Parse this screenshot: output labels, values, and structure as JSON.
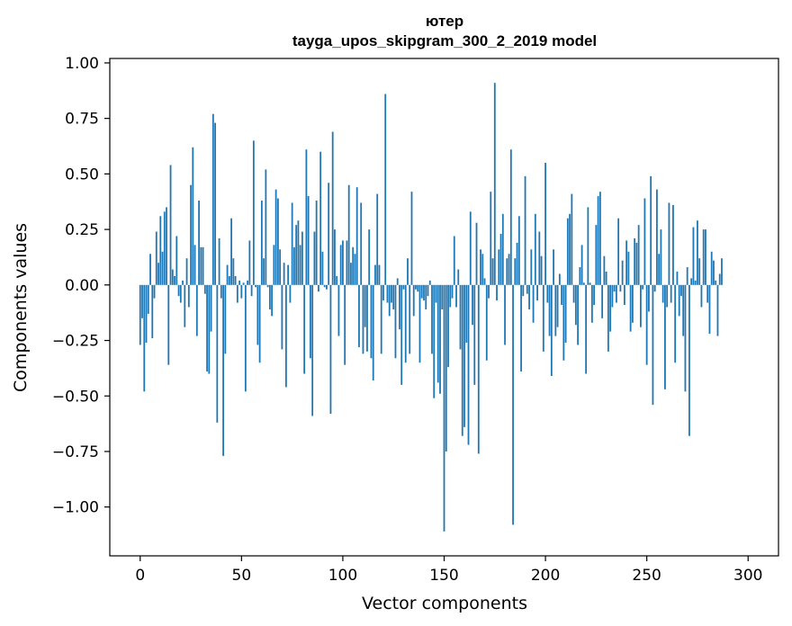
{
  "chart_data": {
    "type": "bar",
    "title": "ютер",
    "subtitle": "tayga_upos_skipgram_300_2_2019 model",
    "xlabel": "Vector components",
    "ylabel": "Components values",
    "xlim": [
      -15,
      315
    ],
    "ylim": [
      -1.22,
      1.02
    ],
    "xticks": [
      0,
      50,
      100,
      150,
      200,
      250,
      300
    ],
    "xtick_labels": [
      "0",
      "50",
      "100",
      "150",
      "200",
      "250",
      "300"
    ],
    "yticks": [
      1.0,
      0.75,
      0.5,
      0.25,
      0.0,
      -0.25,
      -0.5,
      -0.75,
      -1.0
    ],
    "ytick_labels": [
      "1.00",
      "0.75",
      "0.50",
      "0.25",
      "0.00",
      "−0.25",
      "−0.50",
      "−0.75",
      "−1.00"
    ],
    "grid": false,
    "bar_color": "#1f77b4",
    "series": [
      {
        "values": [
          -0.27,
          -0.15,
          -0.48,
          -0.26,
          -0.13,
          0.14,
          -0.24,
          -0.06,
          0.24,
          0.1,
          0.31,
          0.15,
          0.33,
          0.35,
          -0.36,
          0.54,
          0.07,
          0.04,
          0.22,
          -0.05,
          -0.08,
          0.02,
          -0.19,
          0.12,
          -0.1,
          0.45,
          0.62,
          0.18,
          -0.23,
          0.38,
          0.17,
          0.17,
          -0.04,
          -0.39,
          -0.4,
          -0.21,
          0.77,
          0.73,
          -0.62,
          0.21,
          -0.06,
          -0.77,
          -0.31,
          0.09,
          0.04,
          0.3,
          0.12,
          0.04,
          -0.08,
          0.02,
          -0.06,
          0.01,
          -0.48,
          0.02,
          0.2,
          -0.05,
          0.65,
          -0.01,
          -0.27,
          -0.35,
          0.38,
          0.12,
          0.52,
          -0.01,
          -0.11,
          -0.14,
          0.18,
          0.43,
          0.39,
          0.16,
          -0.29,
          0.1,
          -0.46,
          0.09,
          -0.08,
          0.37,
          0.17,
          0.27,
          0.29,
          0.18,
          0.24,
          -0.4,
          0.61,
          0.4,
          -0.33,
          -0.59,
          0.24,
          0.38,
          -0.03,
          0.6,
          0.15,
          -0.01,
          -0.02,
          0.46,
          -0.58,
          0.69,
          0.25,
          0.04,
          -0.23,
          0.18,
          0.2,
          -0.36,
          0.2,
          0.45,
          0.1,
          0.17,
          0.14,
          0.44,
          -0.28,
          0.37,
          -0.31,
          -0.19,
          -0.3,
          0.25,
          -0.33,
          -0.43,
          0.09,
          0.41,
          0.09,
          -0.31,
          -0.07,
          0.86,
          -0.08,
          -0.14,
          -0.08,
          -0.11,
          -0.33,
          0.03,
          -0.2,
          -0.45,
          -0.02,
          -0.35,
          0.12,
          -0.31,
          0.42,
          -0.14,
          -0.02,
          -0.03,
          -0.35,
          -0.06,
          -0.07,
          -0.11,
          -0.05,
          0.02,
          -0.31,
          -0.51,
          -0.08,
          -0.44,
          -0.49,
          -0.11,
          -1.11,
          -0.75,
          -0.37,
          -0.1,
          -0.06,
          0.22,
          -0.1,
          0.07,
          -0.29,
          -0.68,
          -0.64,
          -0.26,
          -0.72,
          0.33,
          -0.18,
          -0.45,
          0.28,
          -0.76,
          0.16,
          0.14,
          0.03,
          -0.34,
          -0.06,
          0.42,
          0.12,
          0.91,
          -0.07,
          0.16,
          0.23,
          0.32,
          -0.27,
          0.12,
          0.14,
          0.61,
          -1.08,
          0.12,
          0.19,
          0.31,
          -0.39,
          -0.05,
          0.49,
          -0.04,
          -0.11,
          0.16,
          -0.17,
          0.32,
          -0.07,
          0.24,
          0.13,
          -0.3,
          0.55,
          -0.08,
          -0.23,
          -0.41,
          0.16,
          -0.23,
          -0.19,
          0.05,
          -0.09,
          -0.34,
          -0.26,
          0.3,
          0.32,
          0.41,
          -0.08,
          -0.18,
          -0.27,
          0.08,
          0.18,
          0.01,
          -0.4,
          0.35,
          0.01,
          -0.17,
          -0.09,
          0.27,
          0.4,
          0.42,
          -0.15,
          0.13,
          0.06,
          -0.3,
          -0.21,
          -0.1,
          -0.03,
          -0.08,
          0.3,
          -0.03,
          0.11,
          -0.09,
          0.2,
          0.15,
          -0.21,
          -0.17,
          0.21,
          0.19,
          0.27,
          -0.19,
          -0.02,
          0.39,
          -0.36,
          -0.12,
          0.49,
          -0.54,
          -0.03,
          0.43,
          0.14,
          0.25,
          -0.08,
          -0.47,
          -0.1,
          0.37,
          -0.08,
          0.36,
          -0.35,
          0.06,
          -0.14,
          -0.05,
          -0.23,
          -0.48,
          0.08,
          -0.68,
          0.03,
          0.26,
          0.02,
          0.29,
          0.12,
          -0.1,
          0.25,
          0.25,
          -0.08,
          -0.22,
          0.15,
          0.11,
          0.02,
          -0.23,
          0.05,
          0.12
        ]
      }
    ]
  }
}
